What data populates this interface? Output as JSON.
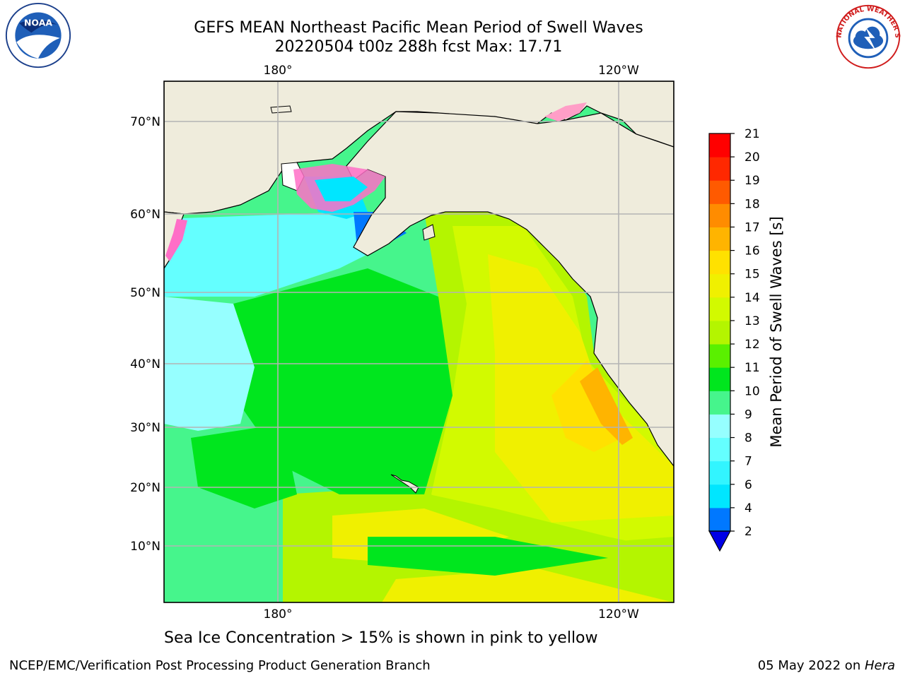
{
  "title": {
    "line1": "GEFS MEAN Northeast Pacific Mean Period of Swell Waves",
    "line2": "20220504 t00z 288h fcst   Max: 17.71"
  },
  "logos": {
    "left": "noaa-logo",
    "left_text": "NOAA",
    "right": "nws-logo",
    "right_text": "NATIONAL WEATHER SERVICE"
  },
  "map": {
    "lon_labels_top": [
      "180°",
      "120°W"
    ],
    "lon_labels_bottom": [
      "180°",
      "120°W"
    ],
    "lat_labels": [
      "70°N",
      "60°N",
      "50°N",
      "40°N",
      "30°N",
      "20°N",
      "10°N"
    ],
    "land_color": "#efecdc",
    "grid_color": "#b4b4b4"
  },
  "chart_data": {
    "type": "heatmap",
    "title": "GEFS MEAN Northeast Pacific Mean Period of Swell Waves",
    "colorbar_label": "Mean Period of Swell Waves [s]",
    "colorbar_ticks": [
      "2",
      "4",
      "6",
      "7",
      "8",
      "9",
      "10",
      "11",
      "12",
      "13",
      "14",
      "15",
      "16",
      "17",
      "18",
      "19",
      "20",
      "21"
    ],
    "colorbar_colors": [
      "#0000e6",
      "#0078ff",
      "#00e6ff",
      "#32f5ff",
      "#64ffff",
      "#96ffff",
      "#46f58c",
      "#00e61e",
      "#5af000",
      "#b4f500",
      "#d2fa00",
      "#f0f000",
      "#ffe100",
      "#ffb400",
      "#ff8c00",
      "#ff5a00",
      "#ff2800",
      "#ff0000"
    ],
    "max_value": 17.71,
    "extend": "min"
  },
  "note": "Sea Ice Concentration > 15% is shown in pink to yellow",
  "footer": {
    "left": "NCEP/EMC/Verification Post Processing Product Generation Branch",
    "date": "05 May 2022 on ",
    "machine": "Hera"
  }
}
